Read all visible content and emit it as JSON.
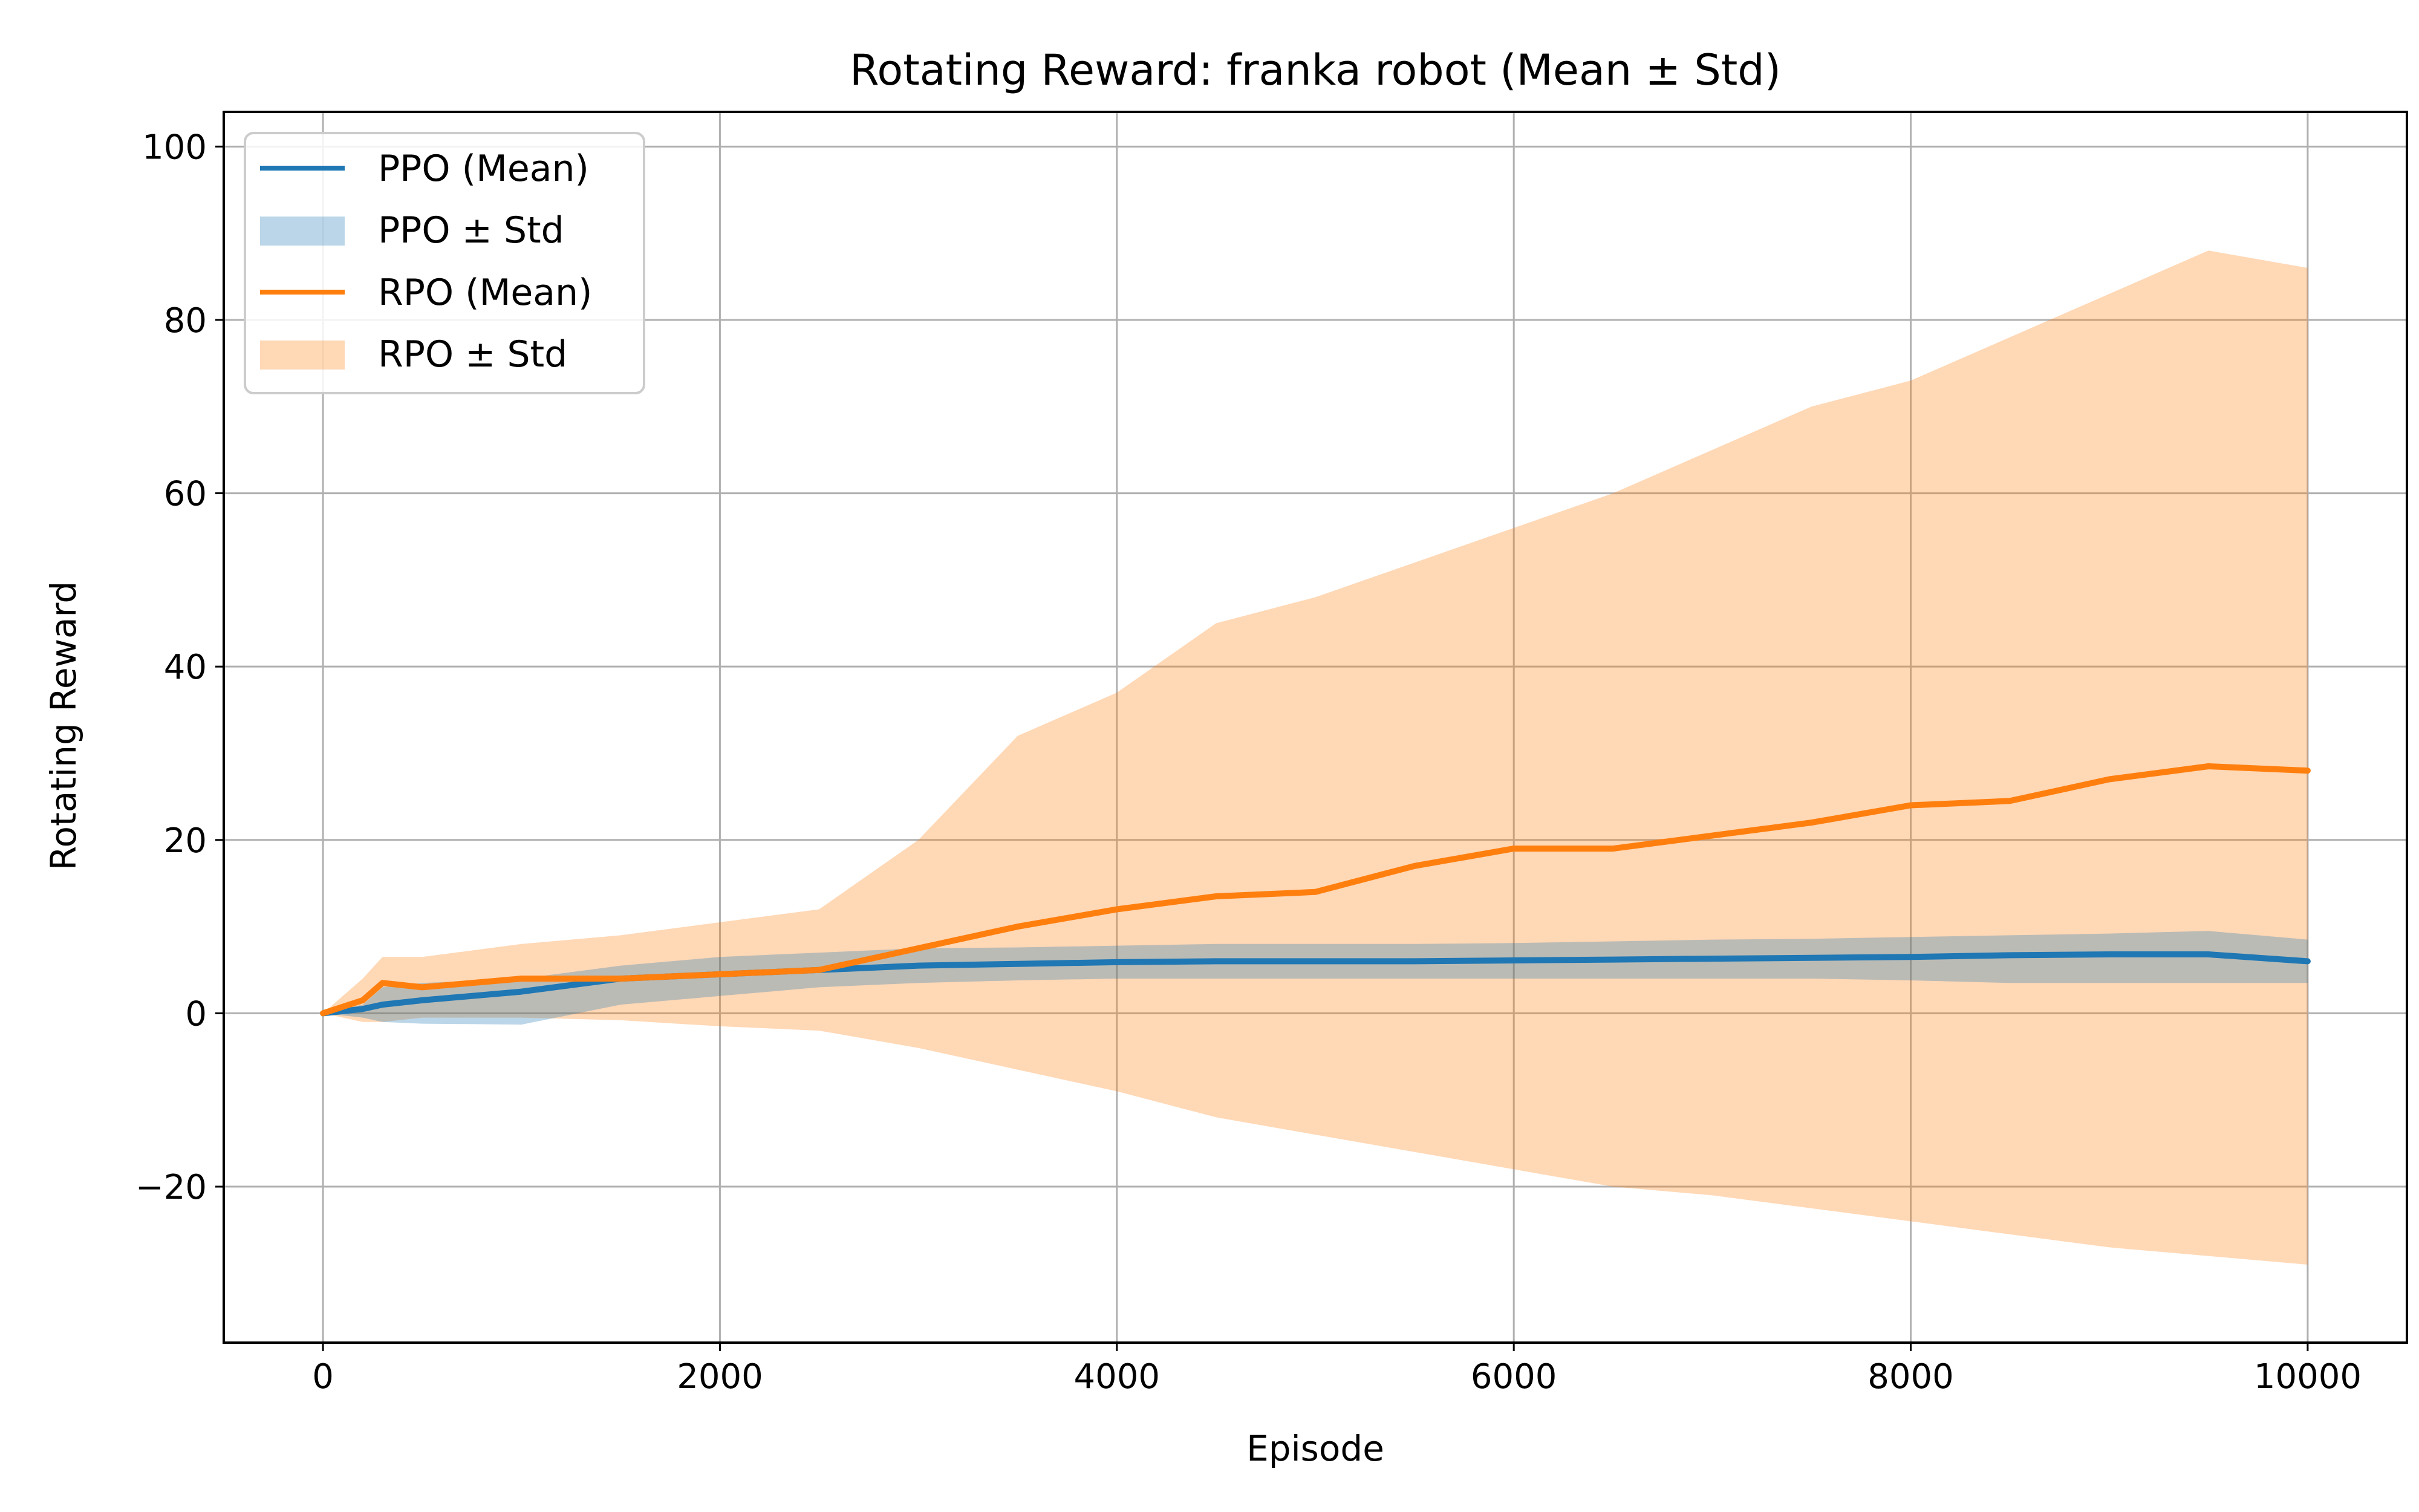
{
  "chart_data": {
    "type": "line",
    "title": "Rotating Reward: franka robot (Mean ± Std)",
    "xlabel": "Episode",
    "ylabel": "Rotating Reward",
    "xlim": [
      -500,
      10500
    ],
    "ylim": [
      -38,
      104
    ],
    "x_ticks": [
      0,
      2000,
      4000,
      6000,
      8000,
      10000
    ],
    "x_tick_labels": [
      "0",
      "2000",
      "4000",
      "6000",
      "8000",
      "10000"
    ],
    "y_ticks": [
      -20,
      0,
      20,
      40,
      60,
      80,
      100
    ],
    "y_tick_labels": [
      "−20",
      "0",
      "20",
      "40",
      "60",
      "80",
      "100"
    ],
    "grid": true,
    "legend_position": "upper left",
    "legend": [
      {
        "label": "PPO (Mean)",
        "kind": "line",
        "color": "#1f77b4"
      },
      {
        "label": "PPO ± Std",
        "kind": "band",
        "color": "#1f77b4"
      },
      {
        "label": "RPO (Mean)",
        "kind": "line",
        "color": "#ff7f0e"
      },
      {
        "label": "RPO ± Std",
        "kind": "band",
        "color": "#ff7f0e"
      }
    ],
    "x": [
      0,
      200,
      300,
      500,
      1000,
      1500,
      2000,
      2500,
      3000,
      3500,
      4000,
      4500,
      5000,
      5500,
      6000,
      6500,
      7000,
      7500,
      8000,
      8500,
      9000,
      9500,
      10000
    ],
    "series": [
      {
        "name": "PPO (Mean)",
        "color": "#1f77b4",
        "mean": [
          0,
          0.5,
          1,
          1.5,
          2.5,
          4,
          4.5,
          5,
          5.5,
          5.7,
          5.9,
          6,
          6,
          6,
          6.1,
          6.2,
          6.3,
          6.4,
          6.5,
          6.7,
          6.8,
          6.8,
          6
        ],
        "lower": [
          0,
          -0.5,
          -1,
          -1.2,
          -1.3,
          1,
          2,
          3,
          3.5,
          3.8,
          4,
          4,
          4,
          4,
          4,
          4,
          4,
          4,
          3.8,
          3.5,
          3.5,
          3.5,
          3.5
        ],
        "upper": [
          0,
          1,
          3,
          3.5,
          4,
          5.5,
          6.5,
          7,
          7.5,
          7.6,
          7.8,
          8,
          8,
          8,
          8.1,
          8.3,
          8.5,
          8.6,
          8.8,
          9,
          9.2,
          9.5,
          8.5
        ]
      },
      {
        "name": "RPO (Mean)",
        "color": "#ff7f0e",
        "mean": [
          0,
          1.5,
          3.5,
          3,
          4,
          4,
          4.5,
          5,
          7.5,
          10,
          12,
          13.5,
          14,
          17,
          19,
          19,
          20.5,
          22,
          24,
          24.5,
          27,
          28.5,
          28
        ],
        "lower": [
          0,
          -1,
          -1,
          -0.5,
          -0.5,
          -0.8,
          -1.5,
          -2,
          -4,
          -6.5,
          -9,
          -12,
          -14,
          -16,
          -18,
          -20,
          -21,
          -22.5,
          -24,
          -25.5,
          -27,
          -28,
          -29
        ],
        "upper": [
          0,
          4,
          6.5,
          6.5,
          8,
          9,
          10.5,
          12,
          20,
          32,
          37,
          45,
          48,
          52,
          56,
          60,
          65,
          70,
          73,
          78,
          83,
          88,
          86
        ]
      }
    ]
  }
}
